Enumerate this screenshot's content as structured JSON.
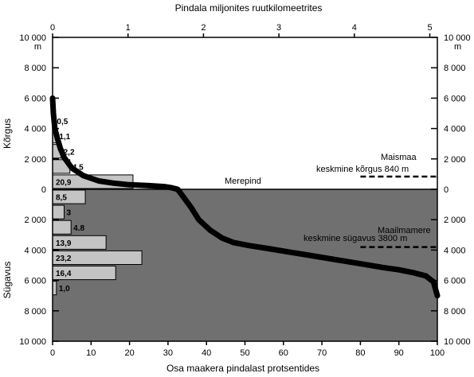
{
  "chart_data": {
    "type": "area",
    "title_top": "Pindala miljonites ruutkilomeetrites",
    "xlabel": "Osa maakera pindalast protsentides",
    "ylabel_upper": "Kõrgus",
    "ylabel_lower": "Sügavus",
    "xlim": [
      0,
      100
    ],
    "ylim": [
      -10000,
      10000
    ],
    "top_axis_ticks": [
      "0",
      "1",
      "2",
      "3",
      "4",
      "5"
    ],
    "bottom_axis_ticks": [
      "0",
      "10",
      "20",
      "30",
      "40",
      "50",
      "60",
      "70",
      "80",
      "90",
      "100"
    ],
    "y_tick_values": [
      10000,
      8000,
      6000,
      4000,
      2000,
      0,
      -2000,
      -4000,
      -6000,
      -8000,
      -10000
    ],
    "y_tick_labels": [
      "10 000",
      "8 000",
      "6 000",
      "4 000",
      "2 000",
      "0",
      "2 000",
      "4 000",
      "6 000",
      "8 000",
      "10 000"
    ],
    "y_unit": "m",
    "sea_level_label": "Merepind",
    "land_label_1": "Maismaa",
    "land_label_2": "keskmine kõrgus 840 m",
    "ocean_label_1": "Maailmamere",
    "ocean_label_2": "keskmine sügavus 3800 m",
    "land_mean_elevation": 840,
    "ocean_mean_depth": -3800,
    "hypsographic_curve": {
      "x": [
        0,
        0.2,
        0.6,
        1.2,
        2,
        3,
        5,
        8,
        12,
        16,
        20,
        25,
        29,
        31,
        32.5,
        34,
        36,
        38,
        41,
        44,
        47,
        51,
        56,
        62,
        68,
        74,
        80,
        86,
        90,
        94,
        97,
        99,
        100
      ],
      "y": [
        6000,
        5000,
        4000,
        3400,
        2700,
        2100,
        1400,
        900,
        550,
        400,
        300,
        240,
        180,
        100,
        0,
        -500,
        -1200,
        -2000,
        -2700,
        -3200,
        -3500,
        -3700,
        -3900,
        -4150,
        -4400,
        -4650,
        -4900,
        -5150,
        -5300,
        -5500,
        -5700,
        -6100,
        -7000
      ]
    },
    "histogram": [
      {
        "label": "0,5",
        "band": [
          4000,
          5000
        ],
        "percent": 0.5
      },
      {
        "label": "1,1",
        "band": [
          3000,
          4000
        ],
        "percent": 1.1
      },
      {
        "label": "2,2",
        "band": [
          2000,
          3000
        ],
        "percent": 2.2
      },
      {
        "label": "4,5",
        "band": [
          1000,
          2000
        ],
        "percent": 4.5
      },
      {
        "label": "20,9",
        "band": [
          0,
          1000
        ],
        "percent": 20.9
      },
      {
        "label": "8,5",
        "band": [
          -1000,
          0
        ],
        "percent": 8.5
      },
      {
        "label": "3",
        "band": [
          -2000,
          -1000
        ],
        "percent": 3.0
      },
      {
        "label": "4.8",
        "band": [
          -3000,
          -2000
        ],
        "percent": 4.8
      },
      {
        "label": "13,9",
        "band": [
          -4000,
          -3000
        ],
        "percent": 13.9
      },
      {
        "label": "23,2",
        "band": [
          -5000,
          -4000
        ],
        "percent": 23.2
      },
      {
        "label": "16,4",
        "band": [
          -6000,
          -5000
        ],
        "percent": 16.4
      },
      {
        "label": "1,0",
        "band": [
          -7000,
          -6000
        ],
        "percent": 1.0
      }
    ],
    "grid": false,
    "colors": {
      "ocean_fill": "#707070",
      "histogram_fill": "#c4c4c4",
      "curve": "#000000"
    }
  }
}
